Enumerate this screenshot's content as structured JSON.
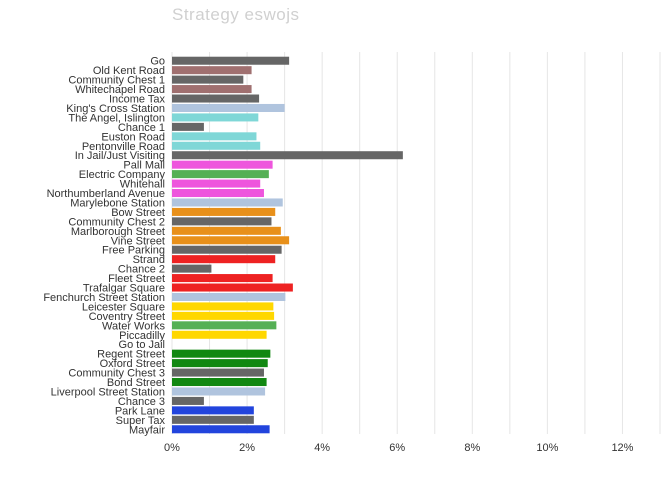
{
  "chart_data": {
    "type": "bar",
    "orientation": "horizontal",
    "title": "Strategy   eswojs",
    "xlabel": "",
    "ylabel": "",
    "xlim": [
      0,
      13
    ],
    "grid": true,
    "x_ticks": [
      "0%",
      "2%",
      "4%",
      "6%",
      "8%",
      "10%",
      "12%"
    ],
    "x_tick_values": [
      0,
      2,
      4,
      6,
      8,
      10,
      12
    ],
    "categories": [
      "Go",
      "Old Kent Road",
      "Community Chest 1",
      "Whitechapel Road",
      "Income Tax",
      "King's Cross Station",
      "The Angel, Islington",
      "Chance 1",
      "Euston Road",
      "Pentonville Road",
      "In Jail/Just Visiting",
      "Pall Mall",
      "Electric Company",
      "Whitehall",
      "Northumberland Avenue",
      "Marylebone Station",
      "Bow Street",
      "Community Chest 2",
      "Marlborough Street",
      "Vine Street",
      "Free Parking",
      "Strand",
      "Chance 2",
      "Fleet Street",
      "Trafalgar Square",
      "Fenchurch Street Station",
      "Leicester Square",
      "Coventry Street",
      "Water Works",
      "Piccadilly",
      "Go to Jail",
      "Regent Street",
      "Oxford Street",
      "Community Chest 3",
      "Bond Street",
      "Liverpool Street Station",
      "Chance 3",
      "Park Lane",
      "Super Tax",
      "Mayfair"
    ],
    "values": [
      3.12,
      2.12,
      1.9,
      2.12,
      2.32,
      3.0,
      2.3,
      0.85,
      2.25,
      2.35,
      6.15,
      2.68,
      2.58,
      2.35,
      2.45,
      2.95,
      2.75,
      2.65,
      2.9,
      3.12,
      2.92,
      2.75,
      1.05,
      2.68,
      3.22,
      3.02,
      2.7,
      2.72,
      2.78,
      2.52,
      0,
      2.62,
      2.55,
      2.45,
      2.52,
      2.48,
      0.85,
      2.18,
      2.18,
      2.6
    ],
    "colors": [
      "#666666",
      "#a07070",
      "#666666",
      "#a07070",
      "#666666",
      "#b0c4de",
      "#7fd7d7",
      "#666666",
      "#7fd7d7",
      "#7fd7d7",
      "#666666",
      "#ee55dd",
      "#55b055",
      "#ee55dd",
      "#ee55dd",
      "#b0c4de",
      "#e8901a",
      "#666666",
      "#e8901a",
      "#e8901a",
      "#666666",
      "#ee2222",
      "#666666",
      "#ee2222",
      "#ee2222",
      "#b0c4de",
      "#ffd700",
      "#ffd700",
      "#55b055",
      "#ffd700",
      "#666666",
      "#118811",
      "#118811",
      "#666666",
      "#118811",
      "#b0c4de",
      "#666666",
      "#2244dd",
      "#666666",
      "#2244dd"
    ]
  }
}
